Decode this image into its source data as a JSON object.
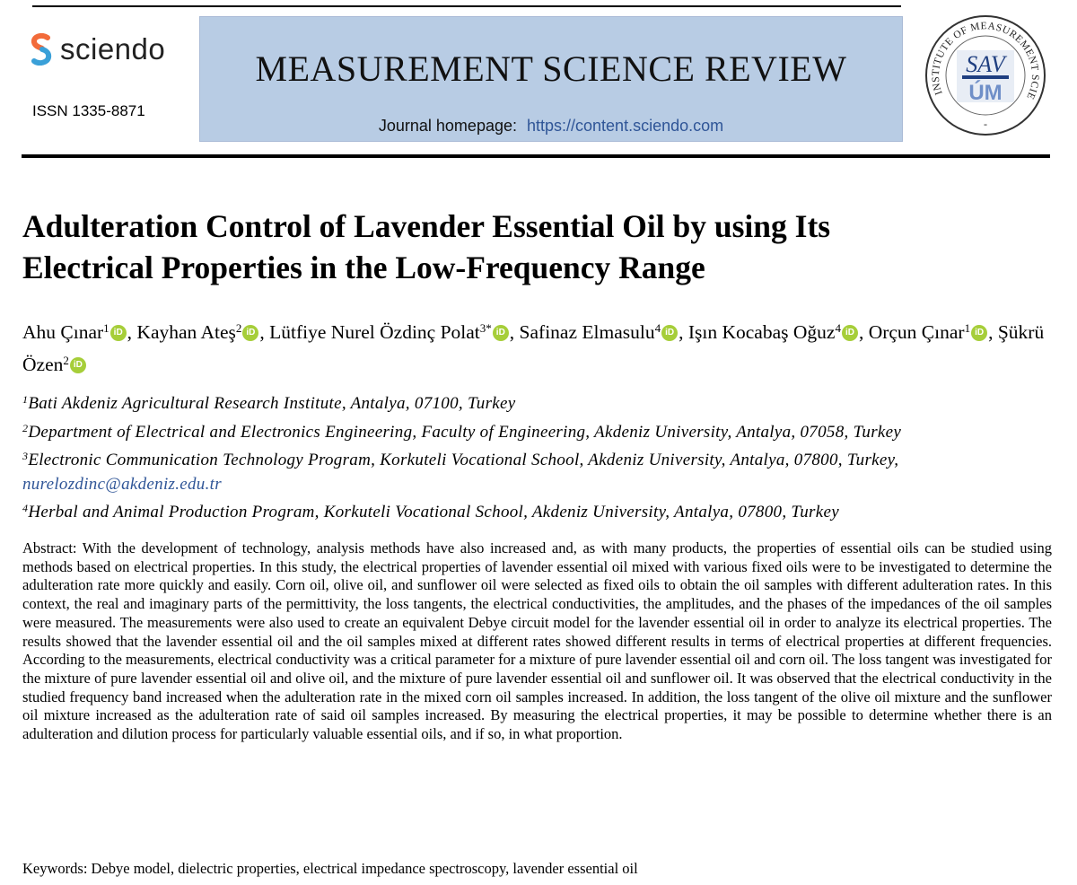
{
  "header": {
    "publisher_name": "sciendo",
    "issn": "ISSN 1335-8871",
    "journal_title": "MEASUREMENT SCIENCE REVIEW",
    "homepage_label": "Journal homepage:",
    "homepage_url": "https://content.sciendo.com",
    "seal_text_ring": "INSTITUTE OF MEASUREMENT SCIENCE",
    "seal_top": "SAV",
    "seal_bottom": "ÚM",
    "colors": {
      "banner": "#b8cce4",
      "link": "#2f5597",
      "orcid": "#a6ce39",
      "sciendo_orange": "#f26b3a",
      "sciendo_blue": "#3aa0d8"
    }
  },
  "paper": {
    "title_line1": "Adulteration Control of Lavender Essential Oil by using Its",
    "title_line2": "Electrical Properties in the Low-Frequency Range",
    "orcid_icon": "iD",
    "authors": [
      {
        "name": "Ahu Çınar",
        "sup": "1",
        "sep": ", "
      },
      {
        "name": "Kayhan Ateş",
        "sup": "2",
        "sep": ", "
      },
      {
        "name": "Lütfiye Nurel Özdinç Polat",
        "sup": "3*",
        "sep": ", "
      },
      {
        "name": "Safinaz Elmasulu",
        "sup": "4",
        "sep": ", "
      },
      {
        "name": "Işın Kocabaş Oğuz",
        "sup": "4",
        "sep": ", "
      },
      {
        "name": "Orçun Çınar",
        "sup": "1",
        "sep": ", "
      },
      {
        "name": "Şükrü Özen",
        "sup": "2",
        "sep": ""
      }
    ],
    "affiliations": [
      {
        "sup": "1",
        "text": "Bati Akdeniz Agricultural Research Institute, Antalya, 07100, Turkey"
      },
      {
        "sup": "2",
        "text": "Department of Electrical and Electronics Engineering, Faculty of Engineering, Akdeniz University, Antalya, 07058, Turkey"
      },
      {
        "sup": "3",
        "text": "Electronic Communication Technology Program, Korkuteli Vocational School, Akdeniz University, Antalya, 07800, Turkey,"
      },
      {
        "sup": "4",
        "text": "Herbal and Animal Production Program, Korkuteli Vocational School, Akdeniz University, Antalya, 07800, Turkey"
      }
    ],
    "email": "nurelozdinc@akdeniz.edu.tr",
    "abstract": "Abstract: With the development of technology, analysis methods have also increased and, as with many products, the properties of essential oils can be studied using methods based on electrical properties. In this study, the electrical properties of lavender essential oil mixed with various fixed oils were to be investigated to determine the adulteration rate more quickly and easily. Corn oil, olive oil, and sunflower oil were selected as fixed oils to obtain the oil samples with different adulteration rates. In this context, the real and imaginary parts of the permittivity, the loss tangents, the electrical conductivities, the amplitudes, and the phases of the impedances of the oil samples were measured. The measurements were also used to create an equivalent Debye circuit model for the lavender essential oil in order to analyze its electrical properties. The results showed that the lavender essential oil and the oil samples mixed at different rates showed different results in terms of electrical properties at different frequencies. According to the measurements, electrical conductivity was a critical parameter for a mixture of pure lavender essential oil and corn oil. The loss tangent was investigated for the mixture of pure lavender essential oil and olive oil, and the mixture of pure lavender essential oil and sunflower oil. It was observed that the electrical conductivity in the studied frequency band increased when the adulteration rate in the mixed corn oil samples increased. In addition, the loss tangent of the olive oil mixture and the sunflower oil mixture increased as the adulteration rate of said oil samples increased. By measuring the electrical properties, it may be possible to determine whether there is an adulteration and dilution process for particularly valuable essential oils, and if so, in what proportion.",
    "keywords": "Keywords: Debye model, dielectric properties, electrical impedance spectroscopy, lavender essential oil"
  }
}
